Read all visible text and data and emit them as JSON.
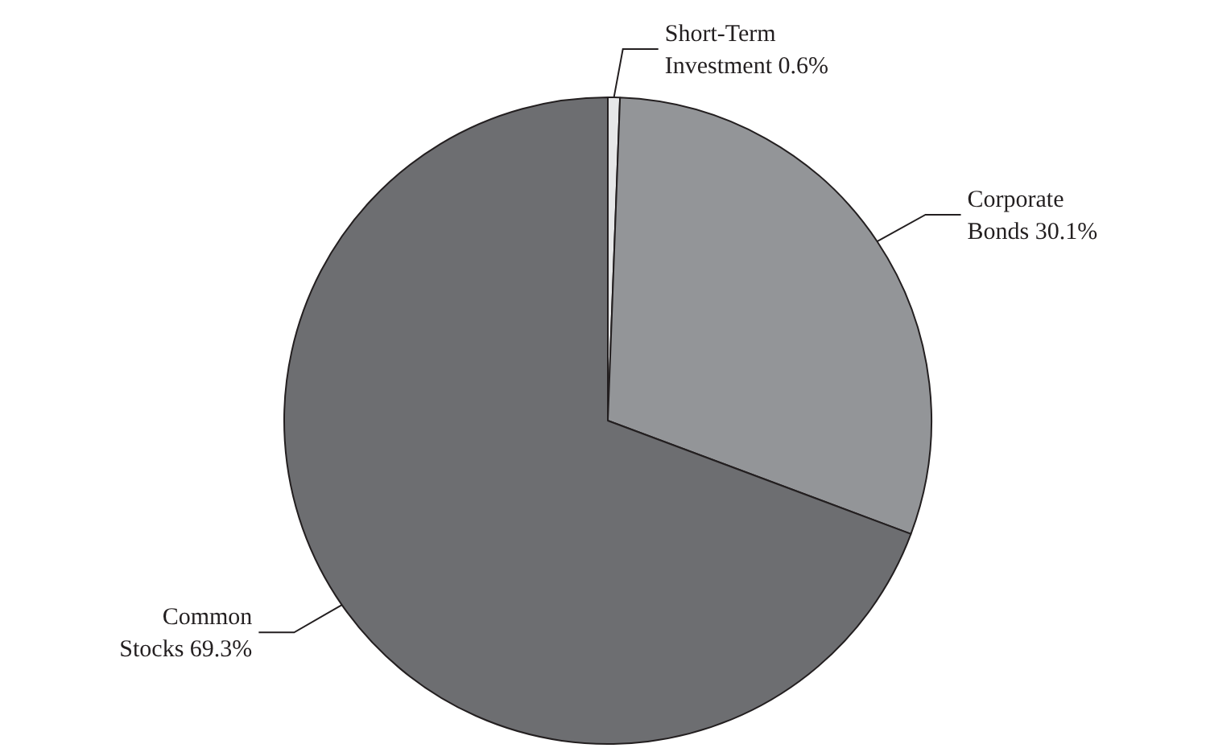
{
  "chart_data": {
    "type": "pie",
    "categories": [
      "Short-Term Investment",
      "Corporate Bonds",
      "Common Stocks"
    ],
    "values": [
      0.6,
      30.1,
      69.3
    ],
    "colors": [
      "#e6e7e8",
      "#939598",
      "#6d6e71"
    ],
    "value_labels": [
      "0.6%",
      "30.1%",
      "69.3%"
    ],
    "legend": false
  }
}
